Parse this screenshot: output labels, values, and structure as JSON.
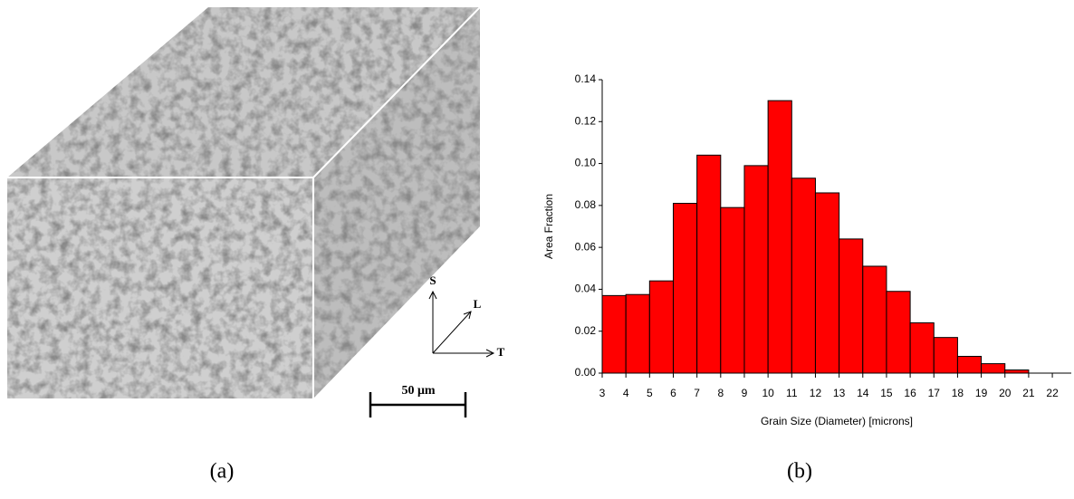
{
  "figure": {
    "panel_a_label": "(a)",
    "panel_b_label": "(b)",
    "axis_s": "S",
    "axis_l": "L",
    "axis_t": "T",
    "scale_bar": "50 μm"
  },
  "chart_data": {
    "type": "histogram",
    "xlabel": "Grain Size (Diameter) [microns]",
    "ylabel": "Area Fraction",
    "color": "#ff0000",
    "bins": [
      3,
      4,
      5,
      6,
      7,
      8,
      9,
      10,
      11,
      12,
      13,
      14,
      15,
      16,
      17,
      18,
      19,
      20,
      21
    ],
    "counts": [
      0.037,
      0.0375,
      0.044,
      0.081,
      0.104,
      0.079,
      0.099,
      0.13,
      0.093,
      0.086,
      0.064,
      0.051,
      0.039,
      0.024,
      0.017,
      0.008,
      0.0045,
      0.0015
    ],
    "xlim": [
      3,
      22.8
    ],
    "ylim": [
      0,
      0.14
    ],
    "xticks": [
      3,
      4,
      5,
      6,
      7,
      8,
      9,
      10,
      11,
      12,
      13,
      14,
      15,
      16,
      17,
      18,
      19,
      20,
      21,
      22
    ],
    "yticks": [
      {
        "value": 0,
        "label": "0.00"
      },
      0.02,
      0.04,
      0.06,
      0.08,
      {
        "value": 0.1,
        "label": "0.10"
      },
      0.12,
      0.14
    ]
  }
}
